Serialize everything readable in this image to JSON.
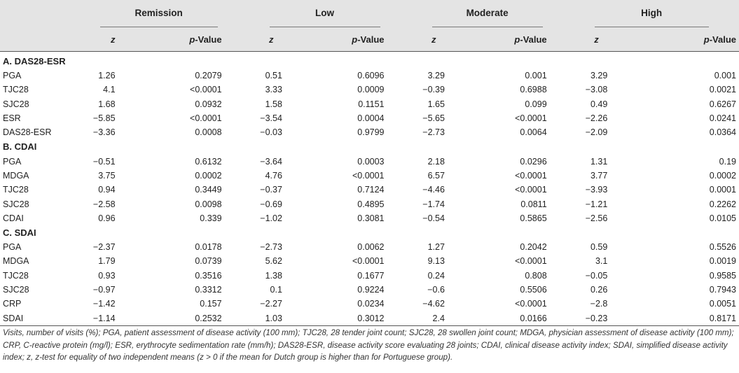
{
  "header": {
    "groups": [
      "Remission",
      "Low",
      "Moderate",
      "High"
    ],
    "z_label": "z",
    "p_label_italic": "p",
    "p_label_rest": "-Value"
  },
  "sections": [
    {
      "title": "A. DAS28-ESR",
      "rows": [
        {
          "label": "PGA",
          "vals": [
            "1.26",
            "0.2079",
            "0.51",
            "0.6096",
            "3.29",
            "0.001",
            "3.29",
            "0.001"
          ]
        },
        {
          "label": "TJC28",
          "vals": [
            "4.1",
            "<0.0001",
            "3.33",
            "0.0009",
            "−0.39",
            "0.6988",
            "−3.08",
            "0.0021"
          ]
        },
        {
          "label": "SJC28",
          "vals": [
            "1.68",
            "0.0932",
            "1.58",
            "0.1151",
            "1.65",
            "0.099",
            "0.49",
            "0.6267"
          ]
        },
        {
          "label": "ESR",
          "vals": [
            "−5.85",
            "<0.0001",
            "−3.54",
            "0.0004",
            "−5.65",
            "<0.0001",
            "−2.26",
            "0.0241"
          ]
        },
        {
          "label": "DAS28-ESR",
          "vals": [
            "−3.36",
            "0.0008",
            "−0.03",
            "0.9799",
            "−2.73",
            "0.0064",
            "−2.09",
            "0.0364"
          ]
        }
      ]
    },
    {
      "title": "B. CDAI",
      "rows": [
        {
          "label": "PGA",
          "vals": [
            "−0.51",
            "0.6132",
            "−3.64",
            "0.0003",
            "2.18",
            "0.0296",
            "1.31",
            "0.19"
          ]
        },
        {
          "label": "MDGA",
          "vals": [
            "3.75",
            "0.0002",
            "4.76",
            "<0.0001",
            "6.57",
            "<0.0001",
            "3.77",
            "0.0002"
          ]
        },
        {
          "label": "TJC28",
          "vals": [
            "0.94",
            "0.3449",
            "−0.37",
            "0.7124",
            "−4.46",
            "<0.0001",
            "−3.93",
            "0.0001"
          ]
        },
        {
          "label": "SJC28",
          "vals": [
            "−2.58",
            "0.0098",
            "−0.69",
            "0.4895",
            "−1.74",
            "0.0811",
            "−1.21",
            "0.2262"
          ]
        },
        {
          "label": "CDAI",
          "vals": [
            "0.96",
            "0.339",
            "−1.02",
            "0.3081",
            "−0.54",
            "0.5865",
            "−2.56",
            "0.0105"
          ]
        }
      ]
    },
    {
      "title": "C. SDAI",
      "rows": [
        {
          "label": "PGA",
          "vals": [
            "−2.37",
            "0.0178",
            "−2.73",
            "0.0062",
            "1.27",
            "0.2042",
            "0.59",
            "0.5526"
          ]
        },
        {
          "label": "MDGA",
          "vals": [
            "1.79",
            "0.0739",
            "5.62",
            "<0.0001",
            "9.13",
            "<0.0001",
            "3.1",
            "0.0019"
          ]
        },
        {
          "label": "TJC28",
          "vals": [
            "0.93",
            "0.3516",
            "1.38",
            "0.1677",
            "0.24",
            "0.808",
            "−0.05",
            "0.9585"
          ]
        },
        {
          "label": "SJC28",
          "vals": [
            "−0.97",
            "0.3312",
            "0.1",
            "0.9224",
            "−0.6",
            "0.5506",
            "0.26",
            "0.7943"
          ]
        },
        {
          "label": "CRP",
          "vals": [
            "−1.42",
            "0.157",
            "−2.27",
            "0.0234",
            "−4.62",
            "<0.0001",
            "−2.8",
            "0.0051"
          ]
        },
        {
          "label": "SDAI",
          "vals": [
            "−1.14",
            "0.2532",
            "1.03",
            "0.3012",
            "2.4",
            "0.0166",
            "−0.23",
            "0.8171"
          ]
        }
      ]
    }
  ],
  "footnote": "Visits, number of visits (%); PGA, patient assessment of disease activity (100 mm); TJC28, 28 tender joint count; SJC28, 28 swollen joint count; MDGA, physician assessment of disease activity (100 mm); CRP, C-reactive protein (mg/l); ESR, erythrocyte sedimentation rate (mm/h); DAS28-ESR, disease activity score evaluating 28 joints; CDAI, clinical disease activity index; SDAI, simplified disease activity index; z, z-test for equality of two independent means (z > 0 if the mean for Dutch group is higher than for Portuguese group)."
}
